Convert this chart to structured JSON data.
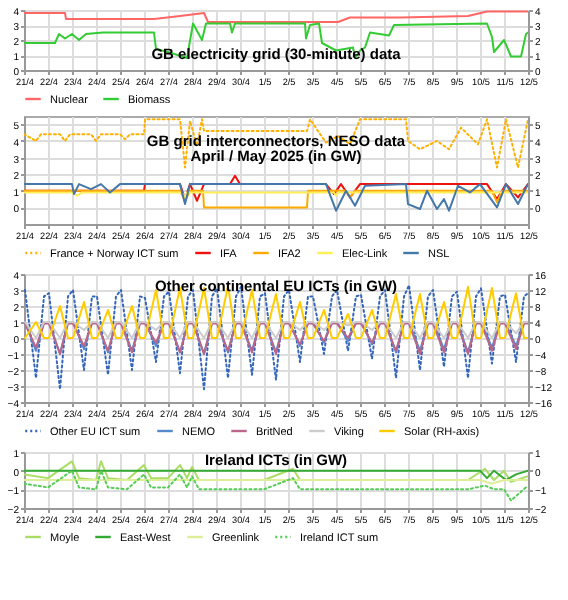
{
  "chart_data": [
    {
      "type": "line",
      "title": "GB electricity grid (30-minute) data",
      "xlim": [
        "--04-21",
        "--05-12"
      ],
      "xticks": [
        {
          "value": "--04-21",
          "label": "21/4"
        },
        {
          "value": "--04-22",
          "label": "22/4"
        },
        {
          "value": "--04-23",
          "label": "23/4"
        },
        {
          "value": "--04-24",
          "label": "24/4"
        },
        {
          "value": "--04-25",
          "label": "25/4"
        },
        {
          "value": "--04-26",
          "label": "26/4"
        },
        {
          "value": "--04-27",
          "label": "27/4"
        },
        {
          "value": "--04-28",
          "label": "28/4"
        },
        {
          "value": "--04-29",
          "label": "29/4"
        },
        {
          "value": "--04-30",
          "label": "30/4"
        },
        {
          "value": "--05-01",
          "label": "1/5"
        },
        {
          "value": "--05-02",
          "label": "2/5"
        },
        {
          "value": "--05-03",
          "label": "3/5"
        },
        {
          "value": "--05-04",
          "label": "4/5"
        },
        {
          "value": "--05-05",
          "label": "5/5"
        },
        {
          "value": "--05-06",
          "label": "6/5"
        },
        {
          "value": "--05-07",
          "label": "7/5"
        },
        {
          "value": "--05-08",
          "label": "8/5"
        },
        {
          "value": "--05-09",
          "label": "9/5"
        },
        {
          "value": "--05-10",
          "label": "10/5"
        },
        {
          "value": "--05-11",
          "label": "11/5"
        },
        {
          "value": "--05-12",
          "label": "12/5"
        }
      ],
      "ylim": [
        0,
        4
      ],
      "yticks": [
        0,
        1,
        2,
        3,
        4
      ],
      "y2lim": [
        0,
        4
      ],
      "y2ticks": [
        0,
        1,
        2,
        3,
        4
      ],
      "grid": true,
      "legend": "bottom",
      "series": [
        {
          "name": "Nuclear",
          "color": "#ff6666",
          "x": [
            "--04-21T00:00",
            "--04-22T17:00",
            "--04-22T18:00",
            "--04-26T10:00",
            "--04-27T12:00",
            "--04-28T12:00",
            "--04-28T16:00",
            "--05-04T02:00",
            "--05-04T14:00",
            "--05-06T17:00",
            "--05-09T12:00",
            "--05-10T07:00",
            "--05-12T00:00"
          ],
          "values": [
            3.8,
            3.8,
            3.4,
            3.4,
            3.6,
            3.8,
            3.2,
            3.2,
            3.5,
            3.5,
            3.6,
            3.9,
            3.9
          ]
        },
        {
          "name": "Biomass",
          "color": "#33cc33",
          "x": [
            "--04-21T00:00",
            "--04-22T07:00",
            "--04-22T11:00",
            "--04-22T17:00",
            "--04-23T00:00",
            "--04-23T07:00",
            "--04-23T14:00",
            "--04-24T07:00",
            "--04-25T12:00",
            "--04-26T10:00",
            "--04-26T12:00",
            "--04-27T00:00",
            "--04-27T19:00",
            "--04-28T01:00",
            "--04-28T10:00",
            "--04-28T14:00",
            "--04-29T14:00",
            "--04-29T16:00",
            "--04-29T19:00",
            "--05-02T17:00",
            "--05-02T18:00",
            "--05-02T22:00",
            "--05-03T07:00",
            "--05-03T10:00",
            "--05-04T00:00",
            "--05-04T17:00",
            "--05-04T19:00",
            "--05-05T00:00",
            "--05-05T05:00",
            "--05-05T10:00",
            "--05-06T05:00",
            "--05-06T10:00",
            "--05-10T07:00",
            "--05-10T12:00",
            "--05-10T14:00",
            "--05-11T00:00",
            "--05-11T07:00",
            "--05-11T17:00",
            "--05-11T22:00",
            "--05-12T00:00"
          ],
          "values": [
            1.8,
            1.8,
            2.4,
            2.1,
            2.4,
            2.0,
            2.4,
            2.5,
            2.5,
            2.5,
            1.4,
            1.2,
            0.8,
            3.1,
            2.0,
            3.1,
            3.1,
            2.5,
            3.1,
            3.1,
            2.1,
            3.0,
            3.1,
            1.8,
            1.3,
            1.5,
            0.8,
            1.3,
            1.5,
            2.5,
            2.3,
            3.0,
            3.1,
            2.2,
            1.2,
            2.0,
            0.9,
            0.9,
            2.4,
            2.5
          ]
        }
      ]
    },
    {
      "type": "line",
      "title": "GB grid interconnectors, NESO data",
      "subtitle": "April / May 2025 (in GW)",
      "xlim": [
        "--04-21",
        "--05-12"
      ],
      "xticks": [
        {
          "value": "--04-21",
          "label": "21/4"
        },
        {
          "value": "--04-22",
          "label": "22/4"
        },
        {
          "value": "--04-23",
          "label": "23/4"
        },
        {
          "value": "--04-24",
          "label": "24/4"
        },
        {
          "value": "--04-25",
          "label": "25/4"
        },
        {
          "value": "--04-26",
          "label": "26/4"
        },
        {
          "value": "--04-27",
          "label": "27/4"
        },
        {
          "value": "--04-28",
          "label": "28/4"
        },
        {
          "value": "--04-29",
          "label": "29/4"
        },
        {
          "value": "--04-30",
          "label": "30/4"
        },
        {
          "value": "--05-01",
          "label": "1/5"
        },
        {
          "value": "--05-02",
          "label": "2/5"
        },
        {
          "value": "--05-03",
          "label": "3/5"
        },
        {
          "value": "--05-04",
          "label": "4/5"
        },
        {
          "value": "--05-05",
          "label": "5/5"
        },
        {
          "value": "--05-06",
          "label": "6/5"
        },
        {
          "value": "--05-07",
          "label": "7/5"
        },
        {
          "value": "--05-08",
          "label": "8/5"
        },
        {
          "value": "--05-09",
          "label": "9/5"
        },
        {
          "value": "--05-10",
          "label": "10/5"
        },
        {
          "value": "--05-11",
          "label": "11/5"
        },
        {
          "value": "--05-12",
          "label": "12/5"
        }
      ],
      "ylim": [
        -1,
        5.5
      ],
      "yticks": [
        0,
        1,
        2,
        3,
        4,
        5
      ],
      "y2lim": [
        -1,
        5.5
      ],
      "y2ticks": [
        0,
        1,
        2,
        3,
        4,
        5
      ],
      "grid": true,
      "legend": "bottom",
      "series": [
        {
          "name": "France + Norway ICT sum",
          "color": "#ffb000",
          "line_style": "dotted",
          "x": [
            "--04-21T00:00",
            "--04-21T12:00",
            "--04-21T17:00",
            "--04-22T12:00",
            "--04-22T17:00",
            "--04-22T22:00",
            "--04-23T19:00",
            "--04-24T00:00",
            "--04-24T05:00",
            "--04-25T00:00",
            "--04-25T05:00",
            "--04-25T10:00",
            "--04-26T00:00",
            "--04-26T01:00",
            "--04-27T12:00",
            "--04-27T17:00",
            "--04-27T22:00",
            "--04-28T05:00",
            "--04-28T10:00",
            "--04-28T12:00",
            "--05-02T19:00",
            "--05-02T22:00",
            "--05-03T14:00",
            "--05-04T02:00",
            "--05-04T14:00",
            "--05-05T00:00",
            "--05-06T22:00",
            "--05-07T00:00",
            "--05-07T12:00",
            "--05-08T05:00",
            "--05-08T17:00",
            "--05-09T05:00",
            "--05-09T22:00",
            "--05-10T07:00",
            "--05-10T17:00",
            "--05-11T02:00",
            "--05-11T14:00",
            "--05-12T00:00"
          ],
          "values": [
            4.4,
            4.0,
            4.4,
            4.4,
            4.0,
            4.4,
            4.4,
            4.0,
            4.4,
            4.4,
            4.1,
            4.4,
            4.4,
            5.3,
            5.3,
            2.4,
            5.2,
            3.7,
            5.3,
            4.6,
            4.6,
            5.3,
            3.9,
            4.3,
            3.8,
            5.3,
            5.3,
            4.0,
            3.5,
            4.0,
            3.5,
            4.8,
            3.8,
            5.3,
            2.4,
            5.3,
            2.4,
            5.3
          ]
        },
        {
          "name": "IFA",
          "color": "#ee1111",
          "x": [
            "--04-21T00:00",
            "--04-26T00:00",
            "--04-26T01:00",
            "--04-27T12:00",
            "--04-27T17:00",
            "--04-27T22:00",
            "--04-28T05:00",
            "--04-28T12:00",
            "--04-29T14:00",
            "--04-29T19:00",
            "--04-30T00:00",
            "--05-03T14:00",
            "--05-03T22:00",
            "--05-04T05:00",
            "--05-04T14:00",
            "--05-05T00:00",
            "--05-10T07:00",
            "--05-10T17:00",
            "--05-11T02:00",
            "--05-11T14:00",
            "--05-12T00:00"
          ],
          "values": [
            1.0,
            1.0,
            1.4,
            1.4,
            0.5,
            1.4,
            0.4,
            1.4,
            1.4,
            1.9,
            1.4,
            1.4,
            0.8,
            1.4,
            0.6,
            1.4,
            1.4,
            0.5,
            1.4,
            0.6,
            1.4
          ]
        },
        {
          "name": "IFA2",
          "color": "#ffaa00",
          "x": [
            "--04-21T00:00",
            "--04-27T12:00",
            "--04-27T17:00",
            "--04-27T22:00",
            "--04-28T11:00",
            "--04-28T12:00",
            "--05-02T19:00",
            "--05-02T20:00",
            "--05-04T10:00",
            "--05-04T14:00",
            "--05-04T19:00",
            "--05-10T12:00",
            "--05-10T17:00",
            "--05-10T22:00",
            "--05-12T00:00"
          ],
          "values": [
            1.0,
            1.0,
            0.4,
            1.0,
            1.0,
            0,
            0,
            1.0,
            1.0,
            0.6,
            1.0,
            1.0,
            0.3,
            1.0,
            1.0
          ]
        },
        {
          "name": "Elec-Link",
          "color": "#ffee55",
          "x": [
            "--04-21T00:00",
            "--04-23T00:00",
            "--04-23T05:00",
            "--04-23T10:00",
            "--04-27T14:00",
            "--04-27T17:00",
            "--04-27T19:00",
            "--05-03T22:00",
            "--05-04T00:00",
            "--05-04T02:00",
            "--05-12T00:00"
          ],
          "values": [
            0.9,
            0.9,
            0.7,
            0.9,
            0.9,
            0.6,
            0.9,
            0.9,
            0.7,
            0.9,
            0.9
          ]
        },
        {
          "name": "NSL",
          "color": "#4477aa",
          "x": [
            "--04-21T00:00",
            "--04-23T00:00",
            "--04-23T02:00",
            "--04-23T07:00",
            "--04-23T19:00",
            "--04-24T05:00",
            "--04-24T14:00",
            "--04-25T00:00",
            "--04-27T12:00",
            "--04-27T17:00",
            "--04-27T22:00",
            "--05-03T14:00",
            "--05-03T19:00",
            "--05-04T00:00",
            "--05-04T10:00",
            "--05-04T19:00",
            "--05-05T05:00",
            "--05-06T22:00",
            "--05-07T00:00",
            "--05-07T12:00",
            "--05-07T19:00",
            "--05-08T05:00",
            "--05-08T12:00",
            "--05-08T17:00",
            "--05-09T02:00",
            "--05-09T14:00",
            "--05-10T00:00",
            "--05-10T17:00",
            "--05-11T02:00",
            "--05-11T14:00",
            "--05-12T00:00"
          ],
          "values": [
            1.4,
            1.4,
            0.8,
            1.4,
            1.1,
            1.4,
            0.9,
            1.4,
            1.4,
            0.2,
            1.4,
            1.4,
            0.6,
            -0.2,
            1.0,
            0.1,
            1.3,
            1.4,
            0.2,
            -0.1,
            1.0,
            -0.1,
            0.5,
            -0.2,
            1.3,
            0.9,
            1.4,
            0.0,
            1.4,
            0.2,
            1.4
          ]
        }
      ]
    },
    {
      "type": "line",
      "title": "Other continental EU ICTs (in GW)",
      "xlim": [
        "--04-21",
        "--05-12"
      ],
      "xticks": [
        {
          "value": "--04-21",
          "label": "21/4"
        },
        {
          "value": "--04-22",
          "label": "22/4"
        },
        {
          "value": "--04-23",
          "label": "23/4"
        },
        {
          "value": "--04-24",
          "label": "24/4"
        },
        {
          "value": "--04-25",
          "label": "25/4"
        },
        {
          "value": "--04-26",
          "label": "26/4"
        },
        {
          "value": "--04-27",
          "label": "27/4"
        },
        {
          "value": "--04-28",
          "label": "28/4"
        },
        {
          "value": "--04-29",
          "label": "29/4"
        },
        {
          "value": "--04-30",
          "label": "30/4"
        },
        {
          "value": "--05-01",
          "label": "1/5"
        },
        {
          "value": "--05-02",
          "label": "2/5"
        },
        {
          "value": "--05-03",
          "label": "3/5"
        },
        {
          "value": "--05-04",
          "label": "4/5"
        },
        {
          "value": "--05-05",
          "label": "5/5"
        },
        {
          "value": "--05-06",
          "label": "6/5"
        },
        {
          "value": "--05-07",
          "label": "7/5"
        },
        {
          "value": "--05-08",
          "label": "8/5"
        },
        {
          "value": "--05-09",
          "label": "9/5"
        },
        {
          "value": "--05-10",
          "label": "10/5"
        },
        {
          "value": "--05-11",
          "label": "11/5"
        },
        {
          "value": "--05-12",
          "label": "12/5"
        }
      ],
      "ylim": [
        -4,
        4
      ],
      "yticks": [
        -4,
        -3,
        -2,
        -1,
        0,
        1,
        2,
        3,
        4
      ],
      "y2lim": [
        -16,
        16
      ],
      "y2ticks": [
        -16,
        -12,
        -8,
        -4,
        0,
        4,
        8,
        12,
        16
      ],
      "grid": true,
      "legend": "bottom",
      "x": [
        "--04-21T01:00",
        "--04-21T12:00",
        "--04-21T20:00",
        "--04-22T01:00",
        "--04-22T12:00",
        "--04-22T20:00",
        "--04-23T01:00",
        "--04-23T12:00",
        "--04-23T20:00",
        "--04-24T01:00",
        "--04-24T12:00",
        "--04-24T20:00",
        "--04-25T01:00",
        "--04-25T12:00",
        "--04-25T20:00",
        "--04-26T01:00",
        "--04-26T12:00",
        "--04-26T20:00",
        "--04-27T01:00",
        "--04-27T12:00",
        "--04-27T20:00",
        "--04-28T01:00",
        "--04-28T12:00",
        "--04-28T20:00",
        "--04-29T01:00",
        "--04-29T12:00",
        "--04-29T20:00",
        "--04-30T01:00",
        "--04-30T12:00",
        "--04-30T20:00",
        "--05-01T01:00",
        "--05-01T12:00",
        "--05-01T20:00",
        "--05-02T01:00",
        "--05-02T12:00",
        "--05-02T20:00",
        "--05-03T01:00",
        "--05-03T12:00",
        "--05-03T20:00",
        "--05-04T01:00",
        "--05-04T12:00",
        "--05-04T20:00",
        "--05-05T01:00",
        "--05-05T12:00",
        "--05-05T20:00",
        "--05-06T01:00",
        "--05-06T12:00",
        "--05-06T20:00",
        "--05-07T01:00",
        "--05-07T12:00",
        "--05-07T20:00",
        "--05-08T01:00",
        "--05-08T12:00",
        "--05-08T20:00",
        "--05-09T01:00",
        "--05-09T12:00",
        "--05-09T20:00",
        "--05-10T01:00",
        "--05-10T12:00",
        "--05-10T20:00",
        "--05-11T01:00",
        "--05-11T12:00",
        "--05-11T20:00",
        "--05-12T00:00"
      ],
      "series": [
        {
          "name": "Other EU ICT sum",
          "color": "#3366bb",
          "line_style": "dotted",
          "values": [
            3.0,
            -2.5,
            2.6,
            2.8,
            -3.2,
            2.6,
            3.0,
            -2.0,
            2.6,
            2.6,
            -2.3,
            2.6,
            3.0,
            -2.0,
            2.6,
            2.5,
            -1.5,
            2.6,
            2.9,
            -2.2,
            2.6,
            3.0,
            -3.2,
            2.6,
            3.1,
            -2.5,
            2.6,
            3.2,
            -2.3,
            2.6,
            2.8,
            -2.6,
            2.6,
            3.0,
            -1.5,
            2.6,
            2.6,
            -1.0,
            2.6,
            3.0,
            -0.8,
            2.6,
            2.7,
            -1.3,
            2.6,
            3.0,
            -2.5,
            2.6,
            3.3,
            -2.0,
            2.6,
            3.0,
            -1.8,
            2.6,
            2.9,
            -2.5,
            2.6,
            3.1,
            -1.6,
            2.6,
            2.7,
            -1.5,
            2.6,
            2.8
          ]
        },
        {
          "name": "NEMO",
          "color": "#5588cc",
          "values": [
            1.0,
            -0.8,
            1.0,
            1.0,
            -1.0,
            1.0,
            1.0,
            -0.7,
            1.0,
            1.0,
            -0.9,
            1.0,
            1.0,
            -0.8,
            1.0,
            1.0,
            -0.5,
            1.0,
            1.0,
            -0.9,
            1.0,
            1.0,
            -1.0,
            1.0,
            1.0,
            -0.9,
            1.0,
            1.0,
            -0.8,
            1.0,
            1.0,
            -0.9,
            1.0,
            1.0,
            -0.5,
            1.0,
            1.0,
            -0.3,
            1.0,
            1.0,
            -0.2,
            1.0,
            1.0,
            -0.4,
            1.0,
            1.0,
            -0.9,
            1.0,
            1.0,
            -0.8,
            1.0,
            1.0,
            -0.7,
            1.0,
            1.0,
            -0.9,
            1.0,
            1.0,
            -0.6,
            1.0,
            1.0,
            -0.5,
            1.0,
            1.0
          ]
        },
        {
          "name": "BritNed",
          "color": "#bb6688",
          "values": [
            0.9,
            -0.6,
            0.9,
            0.9,
            -1.0,
            0.9,
            0.9,
            -0.5,
            0.9,
            0.9,
            -0.8,
            0.9,
            0.9,
            -0.9,
            0.9,
            0.9,
            -0.3,
            0.9,
            0.9,
            -0.9,
            0.9,
            0.9,
            -1.0,
            0.9,
            0.9,
            -0.8,
            0.9,
            0.9,
            -0.9,
            0.9,
            0.9,
            -1.0,
            0.9,
            0.9,
            -0.4,
            0.9,
            0.9,
            -0.2,
            0.9,
            0.9,
            0,
            0.9,
            0.9,
            -0.3,
            0.9,
            0.9,
            -0.8,
            0.9,
            0.9,
            -1.0,
            0.9,
            0.9,
            -0.9,
            0.9,
            0.9,
            -1.0,
            0.9,
            0.9,
            -0.8,
            0.9,
            0.9,
            -0.7,
            0.9,
            0.9
          ]
        },
        {
          "name": "Viking",
          "color": "#cccccc",
          "values": [
            1.0,
            0,
            1.0,
            1.0,
            0,
            1.0,
            1.0,
            0.5,
            1.0,
            1.0,
            0,
            1.0,
            1.0,
            0,
            1.0,
            1.0,
            0.5,
            1.0,
            1.0,
            0,
            1.0,
            1.0,
            0,
            1.0,
            1.0,
            0,
            1.0,
            1.0,
            0,
            1.0,
            1.0,
            0,
            1.0,
            1.0,
            0.5,
            1.0,
            1.0,
            0.5,
            1.0,
            1.0,
            0.8,
            1.0,
            1.0,
            0.5,
            1.0,
            1.0,
            0,
            1.0,
            1.0,
            0,
            1.0,
            1.0,
            0,
            1.0,
            1.0,
            0,
            1.0,
            1.0,
            0,
            1.0,
            1.0,
            0.3,
            1.0,
            1.0
          ]
        },
        {
          "name": "Solar (RH-axis)",
          "color": "#ffcc00",
          "axis": "y2",
          "values": [
            0,
            4,
            0,
            0,
            8,
            0,
            0,
            9,
            0,
            0,
            7,
            0,
            0,
            8,
            0,
            0,
            12,
            0,
            0,
            12.5,
            0,
            0,
            12.5,
            0,
            0,
            13,
            0,
            0,
            12,
            0,
            0,
            11,
            0,
            0,
            9,
            0,
            0,
            7,
            0,
            0,
            6,
            0,
            0,
            7,
            0,
            0,
            11,
            0,
            0,
            11,
            0,
            0,
            9,
            0,
            0,
            12.8,
            0,
            0,
            12.5,
            0,
            0,
            11.2,
            0,
            0
          ]
        }
      ]
    },
    {
      "type": "line",
      "title": "Ireland ICTs (in GW)",
      "xlim": [
        "--04-21",
        "--05-12"
      ],
      "xticks": [
        {
          "value": "--04-21",
          "label": "21/4"
        },
        {
          "value": "--04-22",
          "label": "22/4"
        },
        {
          "value": "--04-23",
          "label": "23/4"
        },
        {
          "value": "--04-24",
          "label": "24/4"
        },
        {
          "value": "--04-25",
          "label": "25/4"
        },
        {
          "value": "--04-26",
          "label": "26/4"
        },
        {
          "value": "--04-27",
          "label": "27/4"
        },
        {
          "value": "--04-28",
          "label": "28/4"
        },
        {
          "value": "--04-29",
          "label": "29/4"
        },
        {
          "value": "--04-30",
          "label": "30/4"
        },
        {
          "value": "--05-01",
          "label": "1/5"
        },
        {
          "value": "--05-02",
          "label": "2/5"
        },
        {
          "value": "--05-03",
          "label": "3/5"
        },
        {
          "value": "--05-04",
          "label": "4/5"
        },
        {
          "value": "--05-05",
          "label": "5/5"
        },
        {
          "value": "--05-06",
          "label": "6/5"
        },
        {
          "value": "--05-07",
          "label": "7/5"
        },
        {
          "value": "--05-08",
          "label": "8/5"
        },
        {
          "value": "--05-09",
          "label": "9/5"
        },
        {
          "value": "--05-10",
          "label": "10/5"
        },
        {
          "value": "--05-11",
          "label": "11/5"
        },
        {
          "value": "--05-12",
          "label": "12/5"
        }
      ],
      "ylim": [
        -2,
        1
      ],
      "yticks": [
        -2,
        -1,
        0,
        1
      ],
      "y2lim": [
        -2,
        1
      ],
      "y2ticks": [
        -2,
        -1,
        0,
        1
      ],
      "grid": true,
      "legend": "bottom",
      "series": [
        {
          "name": "Moyle",
          "color": "#aadd66",
          "x": [
            "--04-21T00:00",
            "--04-22T00:00",
            "--04-23T00:00",
            "--04-23T07:00",
            "--04-24T00:00",
            "--04-24T05:00",
            "--04-24T12:00",
            "--04-25T07:00",
            "--04-26T00:00",
            "--04-26T07:00",
            "--04-27T00:00",
            "--04-27T12:00",
            "--04-27T19:00",
            "--04-28T00:00",
            "--04-28T07:00",
            "--04-30T00:00",
            "--05-01T00:00",
            "--05-02T05:00",
            "--05-02T12:00",
            "--05-05T00:00",
            "--05-09T12:00",
            "--05-10T05:00",
            "--05-10T14:00",
            "--05-11T00:00",
            "--05-11T07:00",
            "--05-12T00:00"
          ],
          "values": [
            -0.2,
            -0.4,
            0.5,
            -0.4,
            -0.5,
            0.5,
            -0.4,
            -0.5,
            0.3,
            -0.4,
            -0.4,
            0.3,
            -0.4,
            0.2,
            -0.5,
            -0.5,
            -0.5,
            0.1,
            -0.5,
            -0.5,
            -0.5,
            0.1,
            -0.5,
            0,
            -0.6,
            -0.3
          ]
        },
        {
          "name": "East-West",
          "color": "#33aa33",
          "x": [
            "--04-21T00:00",
            "--05-10T00:00",
            "--05-10T07:00",
            "--05-10T14:00",
            "--05-11T02:00",
            "--05-11T12:00",
            "--05-12T00:00"
          ],
          "values": [
            0,
            0,
            -0.4,
            0,
            -0.5,
            -0.2,
            0
          ]
        },
        {
          "name": "Greenlink",
          "color": "#ddee99",
          "x": [
            "--04-21T00:00",
            "--04-26T00:00",
            "--04-28T00:00",
            "--05-03T00:00",
            "--05-10T00:00",
            "--05-10T12:00",
            "--05-11T00:00",
            "--05-12T00:00"
          ],
          "values": [
            -0.5,
            -0.5,
            -0.5,
            -0.5,
            -0.5,
            -0.7,
            -0.5,
            -0.5
          ]
        },
        {
          "name": "Ireland ICT sum",
          "color": "#55cc55",
          "line_style": "dotted",
          "x": [
            "--04-21T00:00",
            "--04-22T00:00",
            "--04-23T00:00",
            "--04-23T07:00",
            "--04-24T00:00",
            "--04-24T05:00",
            "--04-24T12:00",
            "--04-25T07:00",
            "--04-26T00:00",
            "--04-26T07:00",
            "--04-27T00:00",
            "--04-27T12:00",
            "--04-27T19:00",
            "--04-28T00:00",
            "--04-28T07:00",
            "--04-30T00:00",
            "--05-01T00:00",
            "--05-02T05:00",
            "--05-02T12:00",
            "--05-05T00:00",
            "--05-09T12:00",
            "--05-10T05:00",
            "--05-10T14:00",
            "--05-11T00:00",
            "--05-11T07:00",
            "--05-12T00:00"
          ],
          "values": [
            -0.7,
            -0.9,
            0,
            -0.9,
            -1.0,
            0,
            -0.9,
            -1.0,
            -0.2,
            -0.9,
            -0.9,
            -0.2,
            -0.9,
            -0.3,
            -1.0,
            -1.0,
            -1.0,
            -0.4,
            -1.0,
            -1.0,
            -1.0,
            -0.8,
            -1.0,
            -1.0,
            -1.6,
            -0.8
          ]
        }
      ]
    }
  ]
}
